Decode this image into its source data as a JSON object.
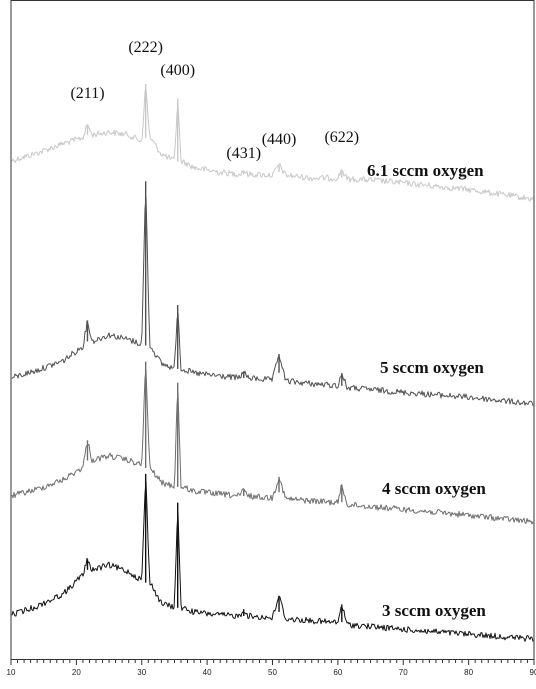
{
  "chart_data": {
    "type": "line",
    "title": "",
    "xlabel": "",
    "ylabel": "",
    "xlim": [
      10,
      90
    ],
    "x_ticks": [
      10,
      20,
      30,
      40,
      50,
      60,
      70,
      80,
      90
    ],
    "y_ticks": [],
    "grid": false,
    "legend": "none",
    "peak_positions": [
      21.7,
      30.6,
      35.5,
      45.6,
      51.0,
      60.6
    ],
    "peak_labels": [
      "(211)",
      "(222)",
      "(400)",
      "(431)",
      "(440)",
      "(622)"
    ],
    "series": [
      {
        "name": "6.1 sccm oxygen",
        "color": "#c8c8c8",
        "x": [
          10,
          14,
          18,
          21,
          21.7,
          22.4,
          25,
          28,
          30,
          30.6,
          31.2,
          33,
          35,
          35.5,
          36,
          38,
          42,
          45,
          45.6,
          46.2,
          50,
          51.0,
          52,
          56,
          60,
          60.6,
          61.4,
          65,
          70,
          80,
          90
        ],
        "y": [
          0.2,
          0.28,
          0.38,
          0.44,
          0.58,
          0.47,
          0.5,
          0.47,
          0.4,
          1.0,
          0.45,
          0.27,
          0.2,
          0.85,
          0.2,
          0.13,
          0.08,
          0.06,
          0.1,
          0.06,
          0.05,
          0.16,
          0.05,
          0.02,
          0.02,
          0.11,
          0.01,
          0.0,
          -0.03,
          -0.1,
          -0.2
        ]
      },
      {
        "name": "5 sccm oxygen",
        "color": "#505050",
        "x": [
          10,
          14,
          18,
          21,
          21.7,
          22.4,
          25,
          28,
          30,
          30.6,
          31.2,
          33,
          35,
          35.5,
          36,
          38,
          42,
          45,
          45.6,
          46.2,
          50,
          51.0,
          52,
          56,
          60,
          60.6,
          61.4,
          65,
          70,
          80,
          90
        ],
        "y": [
          0.0,
          0.08,
          0.18,
          0.33,
          0.6,
          0.38,
          0.45,
          0.4,
          0.35,
          2.05,
          0.35,
          0.15,
          0.1,
          0.76,
          0.1,
          0.05,
          0.02,
          0.0,
          0.07,
          0.0,
          -0.02,
          0.25,
          -0.03,
          -0.06,
          -0.08,
          0.05,
          -0.1,
          -0.12,
          -0.15,
          -0.2,
          -0.27
        ]
      },
      {
        "name": "4 sccm oxygen",
        "color": "#6e6e6e",
        "x": [
          10,
          14,
          18,
          21,
          21.7,
          22.4,
          25,
          28,
          30,
          30.6,
          31.2,
          33,
          35,
          35.5,
          36,
          38,
          42,
          45,
          45.6,
          46.2,
          50,
          51.0,
          52,
          56,
          60,
          60.6,
          61.4,
          65,
          70,
          80,
          90
        ],
        "y": [
          0.0,
          0.07,
          0.17,
          0.3,
          0.58,
          0.37,
          0.42,
          0.37,
          0.32,
          1.4,
          0.3,
          0.14,
          0.1,
          1.18,
          0.1,
          0.05,
          0.02,
          0.0,
          0.07,
          0.0,
          -0.02,
          0.2,
          -0.03,
          -0.05,
          -0.07,
          0.12,
          -0.09,
          -0.11,
          -0.14,
          -0.2,
          -0.27
        ]
      },
      {
        "name": "3 sccm oxygen",
        "color": "#111111",
        "x": [
          10,
          14,
          18,
          21,
          21.7,
          22.4,
          25,
          28,
          30,
          30.6,
          31.2,
          33,
          35,
          35.5,
          36,
          38,
          42,
          45,
          45.6,
          46.2,
          50,
          51.0,
          52,
          56,
          60,
          60.6,
          61.4,
          65,
          70,
          80,
          90
        ],
        "y": [
          0.0,
          0.09,
          0.22,
          0.42,
          0.58,
          0.47,
          0.52,
          0.45,
          0.36,
          1.47,
          0.35,
          0.12,
          0.08,
          1.17,
          0.08,
          0.03,
          0.0,
          -0.01,
          0.06,
          -0.01,
          -0.03,
          0.2,
          -0.04,
          -0.06,
          -0.08,
          0.11,
          -0.1,
          -0.12,
          -0.15,
          -0.2,
          -0.25
        ]
      }
    ]
  }
}
